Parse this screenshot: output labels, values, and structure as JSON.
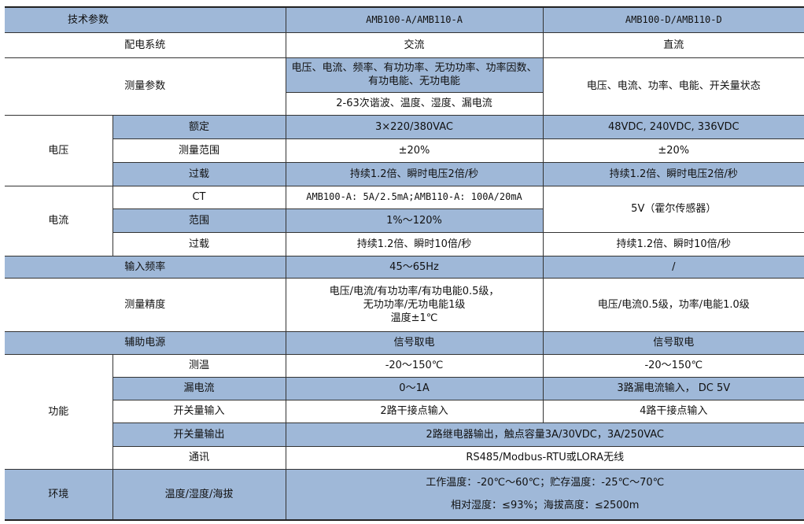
{
  "header": {
    "param": "技术参数",
    "colA": "AMB100-A/AMB110-A",
    "colD": "AMB100-D/AMB110-D"
  },
  "distribution": {
    "label": "配电系统",
    "a": "交流",
    "d": "直流"
  },
  "measure": {
    "label": "测量参数",
    "a1": "电压、电流、频率、有功功率、无功功率、功率因数、有功电能、无功电能",
    "a2": "2-63次谐波、温度、湿度、漏电流",
    "d": "电压、电流、功率、电能、开关量状态"
  },
  "voltage": {
    "label": "电压",
    "rated": {
      "label": "额定",
      "a": "3×220/380VAC",
      "d": "48VDC, 240VDC, 336VDC"
    },
    "range": {
      "label": "测量范围",
      "a": "±20%",
      "d": "±20%"
    },
    "overload": {
      "label": "过载",
      "a": "持续1.2倍、瞬时电压2倍/秒",
      "d": "持续1.2倍、瞬时电压2倍/秒"
    }
  },
  "current": {
    "label": "电流",
    "ct": {
      "label": "CT",
      "a": "AMB100-A: 5A/2.5mA;AMB110-A: 100A/20mA",
      "d": "5V（霍尔传感器）"
    },
    "range": {
      "label": "范围",
      "a": "1%～120%"
    },
    "overload": {
      "label": "过载",
      "a": "持续1.2倍、瞬时10倍/秒",
      "d": "持续1.2倍、瞬时10倍/秒"
    }
  },
  "frequency": {
    "label": "输入频率",
    "a": "45～65Hz",
    "d": "/"
  },
  "accuracy": {
    "label": "测量精度",
    "a1": "电压/电流/有功功率/有功电能0.5级，",
    "a2": "无功功率/无功电能1级",
    "a3": "温度±1℃",
    "d": "电压/电流0.5级，功率/电能1.0级"
  },
  "aux_power": {
    "label": "辅助电源",
    "a": "信号取电",
    "d": "信号取电"
  },
  "function": {
    "label": "功能",
    "temp": {
      "label": "测温",
      "a": "-20～150℃",
      "d": "-20～150℃"
    },
    "leak": {
      "label": "漏电流",
      "a": "0～1A",
      "d": "3路漏电流输入， DC 5V"
    },
    "di": {
      "label": "开关量输入",
      "a": "2路干接点输入",
      "d": "4路干接点输入"
    },
    "do": {
      "label": "开关量输出",
      "ad": "2路继电器输出，触点容量3A/30VDC，3A/250VAC"
    },
    "comm": {
      "label": "通讯",
      "ad": "RS485/Modbus-RTU或LORA无线"
    }
  },
  "environment": {
    "label": "环境",
    "sub": "温度/湿度/海拔",
    "line1": "工作温度：-20℃～60℃；贮存温度：-25℃～70℃",
    "line2": "相对湿度：≤93%；海拔高度：≤2500m"
  },
  "colors": {
    "header_blue": "#9fb8d8",
    "border": "#333333"
  }
}
